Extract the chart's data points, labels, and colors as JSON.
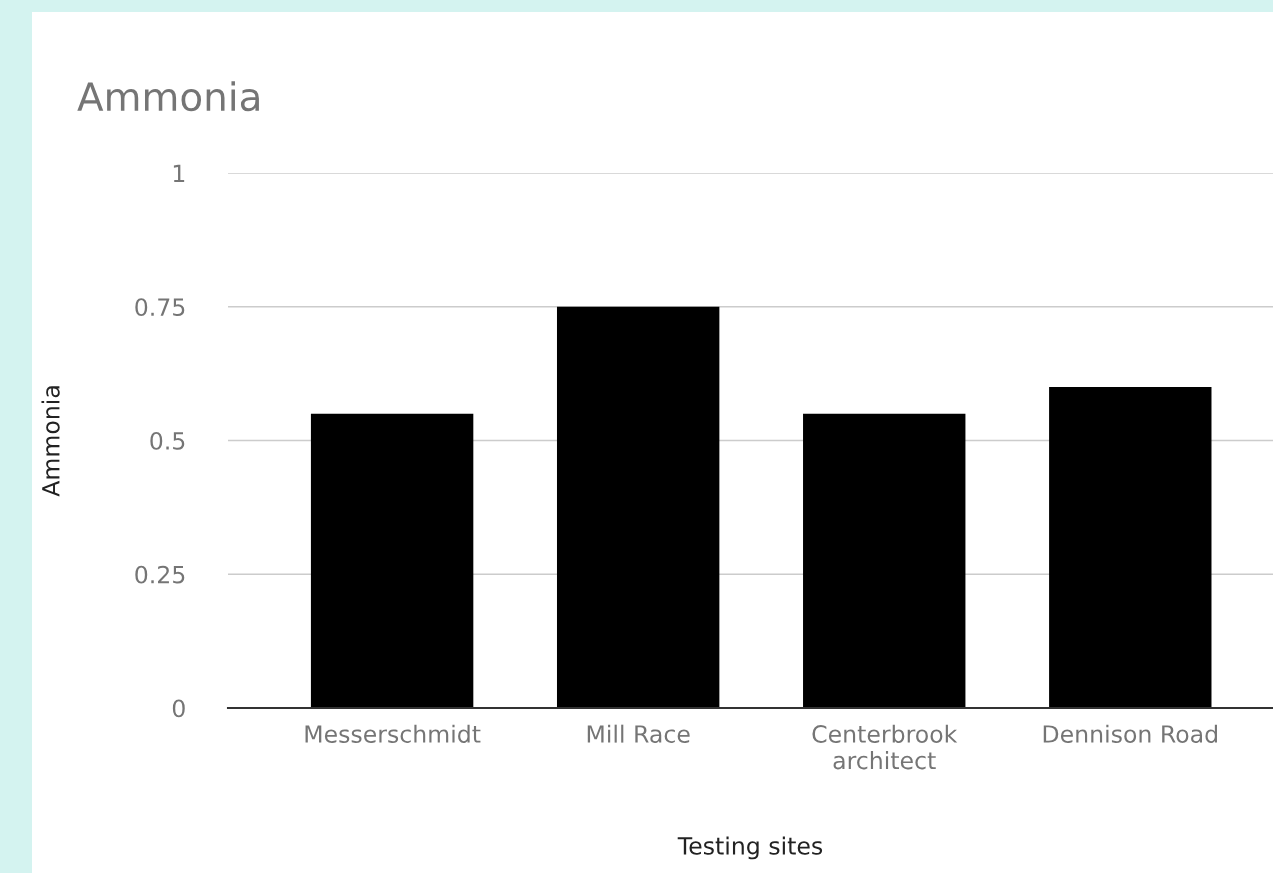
{
  "chart_data": {
    "type": "bar",
    "title": "Ammonia",
    "xlabel": "Testing sites",
    "ylabel": "Ammonia",
    "categories": [
      "Messerschmidt",
      "Mill Race",
      "Centerbrook\narchitect",
      "Dennison Road"
    ],
    "values": [
      0.55,
      0.75,
      0.55,
      0.6
    ],
    "color": "#000000",
    "ylim": [
      0,
      1
    ],
    "yticks": [
      0,
      0.25,
      0.5,
      0.75,
      1
    ],
    "grid": "y"
  }
}
